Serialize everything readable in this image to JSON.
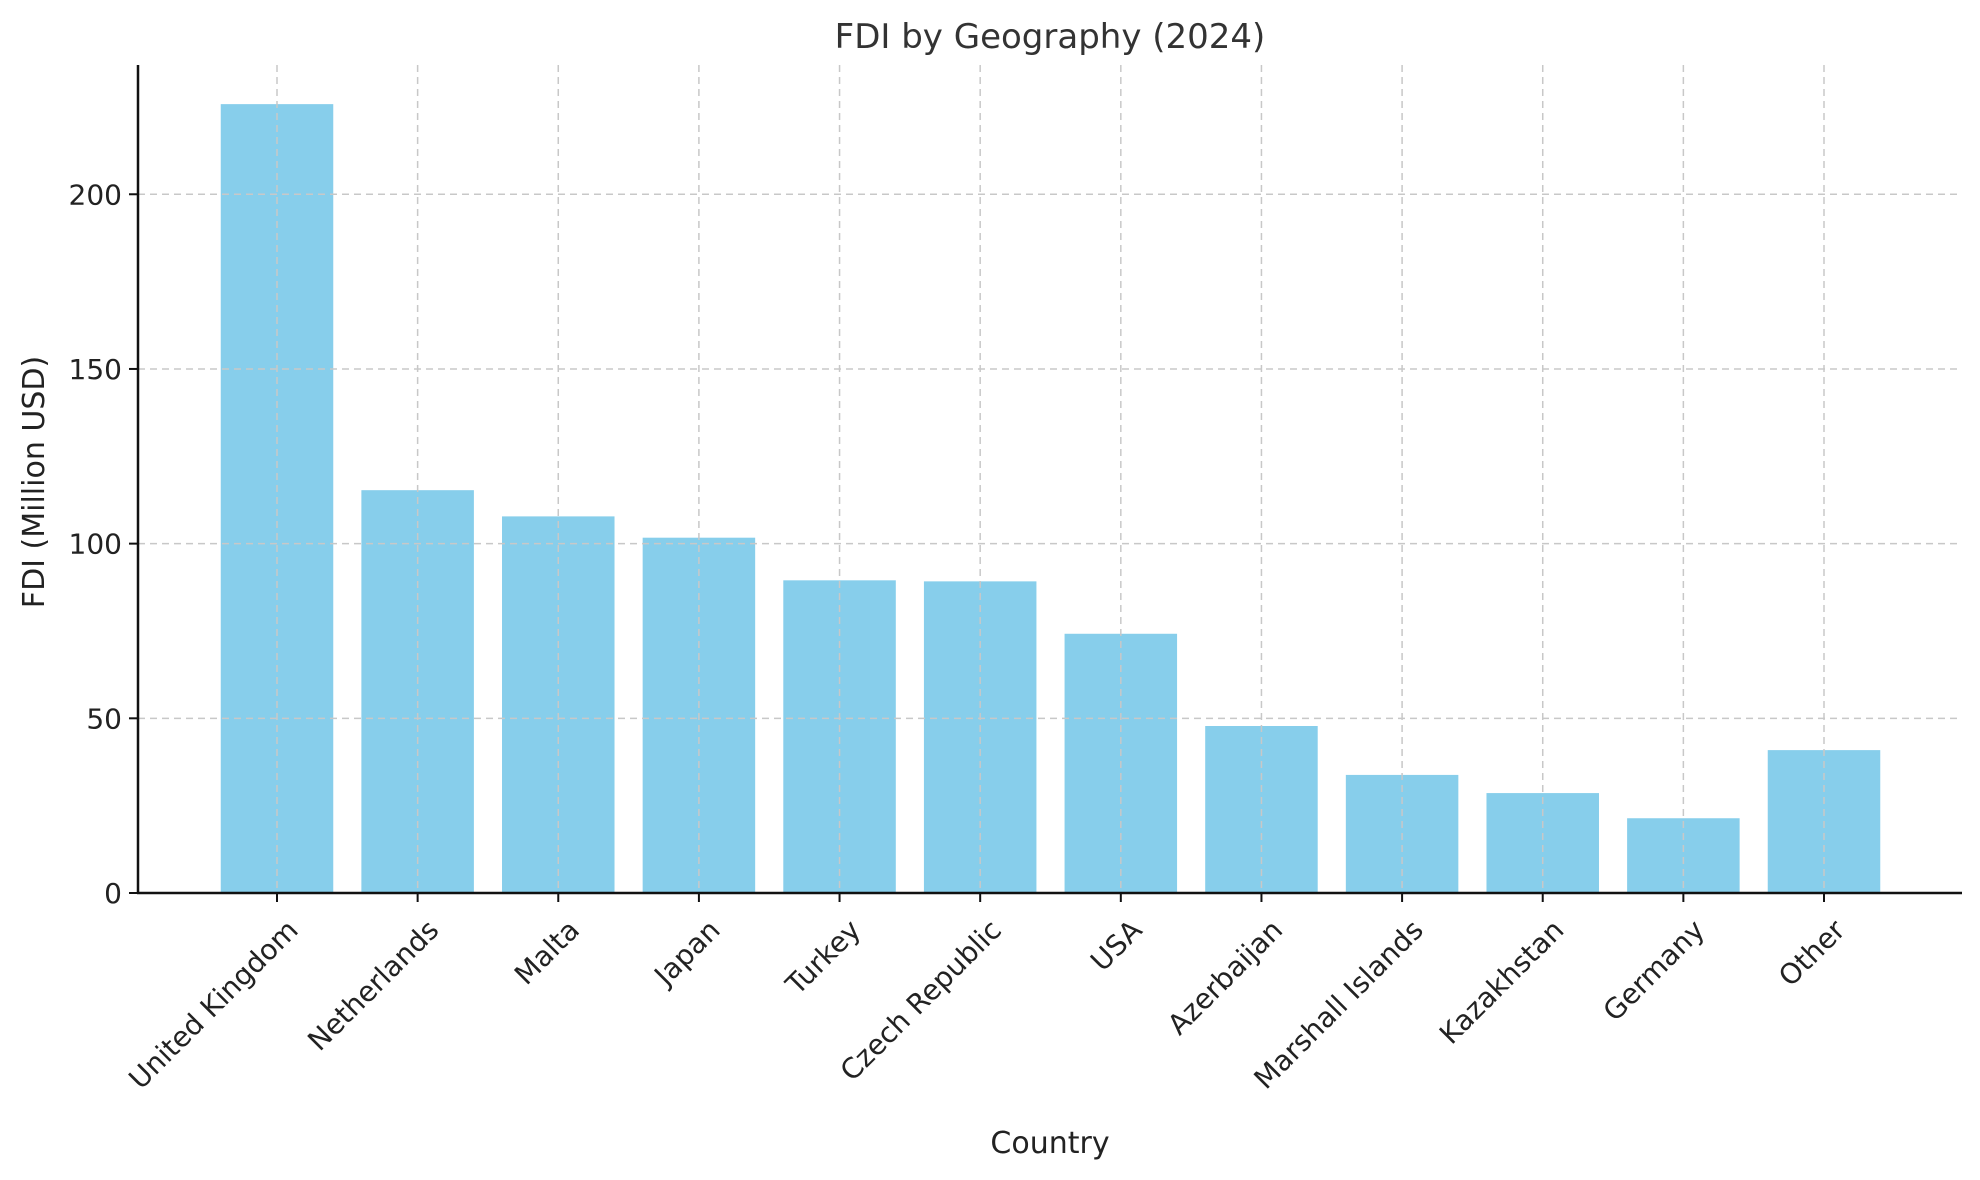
{
  "chart_data": {
    "type": "bar",
    "title": "FDI by Geography (2024)",
    "xlabel": "Country",
    "ylabel": "FDI (Million USD)",
    "categories": [
      "United Kingdom",
      "Netherlands",
      "Malta",
      "Japan",
      "Turkey",
      "Czech Republic",
      "USA",
      "Azerbaijan",
      "Marshall Islands",
      "Kazakhstan",
      "Germany",
      "Other"
    ],
    "values": [
      225.8,
      115.3,
      107.8,
      101.7,
      89.5,
      89.2,
      74.2,
      47.8,
      33.8,
      28.6,
      21.4,
      40.9
    ],
    "ylim": [
      0,
      237
    ],
    "yticks": [
      0,
      50,
      100,
      150,
      200
    ],
    "grid": true,
    "bar_color": "#87CEEB"
  }
}
